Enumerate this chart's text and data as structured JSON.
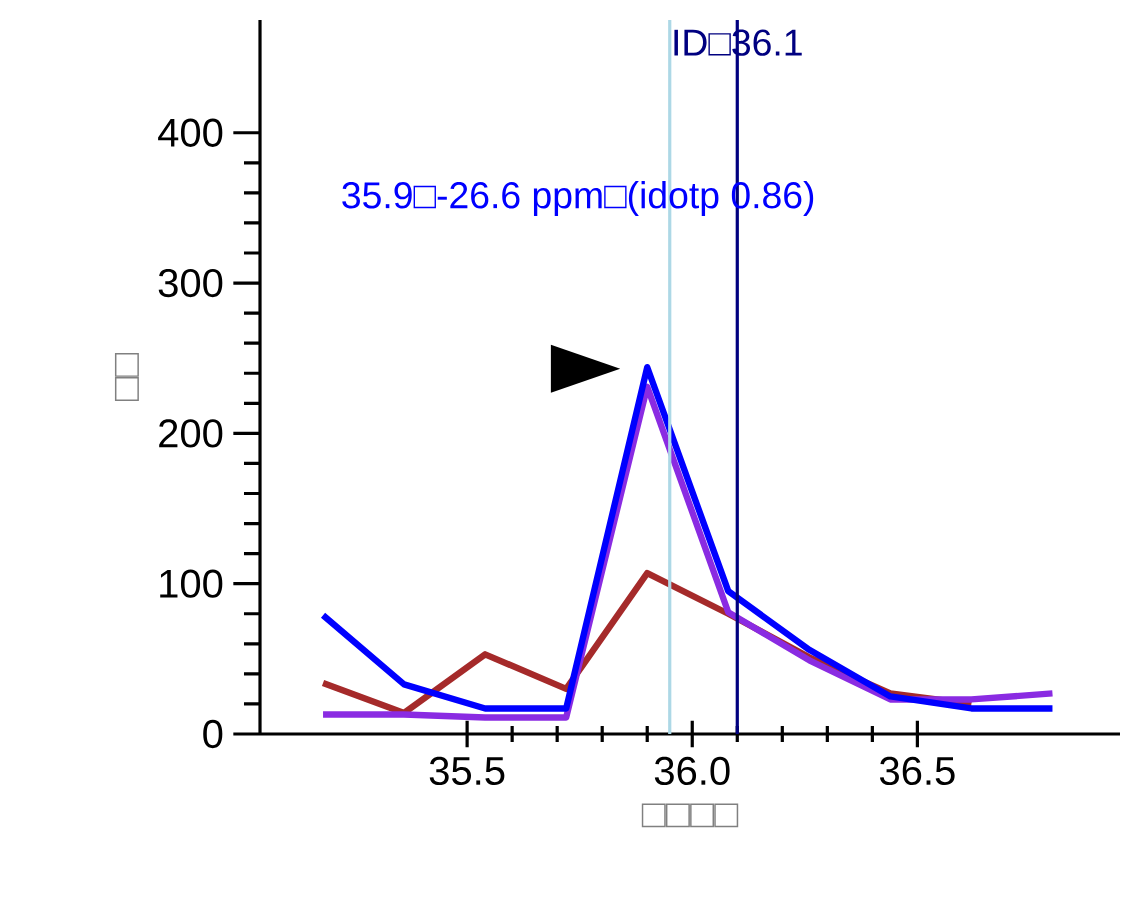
{
  "chart_data": {
    "type": "line",
    "xlabel": "□□□□",
    "ylabel": "□□",
    "x": [
      35.18,
      35.36,
      35.54,
      35.72,
      35.9,
      36.08,
      36.26,
      36.44,
      36.62,
      36.8
    ],
    "series": [
      {
        "color": "#a52a2a",
        "values": [
          34,
          14,
          53,
          30,
          107,
          80,
          51,
          27,
          20,
          null
        ]
      },
      {
        "color": "#8a2be2",
        "values": [
          13,
          13,
          11,
          11,
          231,
          81,
          49,
          23,
          23,
          27
        ]
      },
      {
        "color": "#0000ff",
        "values": [
          79,
          33,
          17,
          17,
          244,
          95,
          56,
          25,
          17,
          17
        ]
      }
    ],
    "xlim": [
      35.04,
      36.95
    ],
    "ylim": [
      0,
      475
    ],
    "xticks": [
      35.5,
      {
        "value": 36,
        "label": "36.0"
      },
      36.5
    ],
    "yticks": [
      0,
      100,
      200,
      300,
      400
    ],
    "ref_lines": [
      {
        "axis": "x",
        "value": 35.95,
        "color": "#add8e6"
      },
      {
        "axis": "x",
        "value": 36.1,
        "color": "#000080",
        "label": "ID□36.1"
      }
    ],
    "annotations": [
      "35.9□-26.6 ppm□(idotp 0.86)"
    ],
    "grid": false,
    "legend": false,
    "marker": "none",
    "line_style": "solid"
  }
}
